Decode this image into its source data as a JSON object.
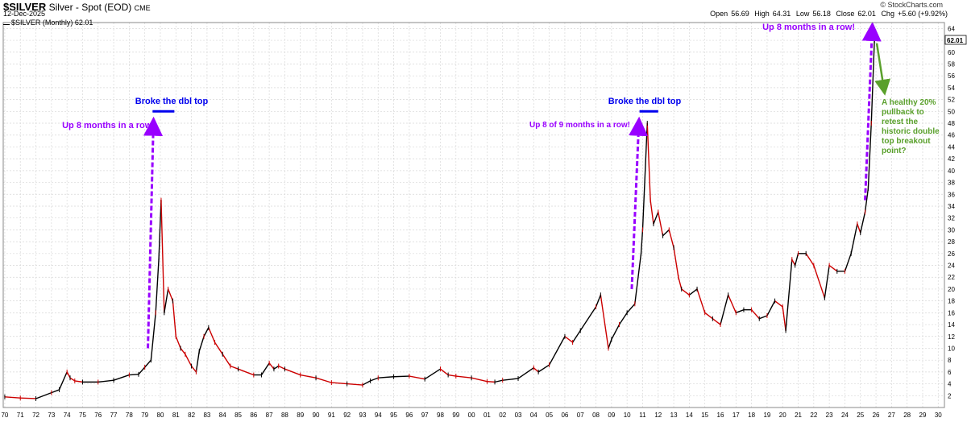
{
  "header": {
    "symbol": "$SILVER",
    "description": "Silver - Spot (EOD)",
    "exchange": "CME",
    "date": "12-Dec-2025",
    "credit": "© StockCharts.com",
    "legend_text": "$SILVER (Monthly) 62.01",
    "ohlc": {
      "open_label": "Open",
      "open": "56.69",
      "high_label": "High",
      "high": "64.31",
      "low_label": "Low",
      "low": "56.18",
      "close_label": "Close",
      "close": "62.01",
      "chg_label": "Chg",
      "chg": "+5.60 (+9.92%)"
    },
    "last_price_tag": "62.01"
  },
  "colors": {
    "up": "#000000",
    "down": "#cc0000",
    "grid": "#d8d8d8",
    "annotation_purple": "#9900ff",
    "annotation_blue": "#0000ee",
    "annotation_green": "#5aa02c"
  },
  "chart_data": {
    "type": "line",
    "title": "$SILVER (Monthly)",
    "xlabel": "",
    "ylabel": "",
    "xlim": [
      1969.9,
      2030.4
    ],
    "ylim": [
      0,
      65
    ],
    "grid": true,
    "y_ticks": [
      2,
      4,
      6,
      8,
      10,
      12,
      14,
      16,
      18,
      20,
      22,
      24,
      26,
      28,
      30,
      32,
      34,
      36,
      38,
      40,
      42,
      44,
      46,
      48,
      50,
      52,
      54,
      56,
      58,
      60,
      62,
      64
    ],
    "x_ticks": [
      "70",
      "71",
      "72",
      "73",
      "74",
      "75",
      "76",
      "77",
      "78",
      "79",
      "80",
      "81",
      "82",
      "83",
      "84",
      "85",
      "86",
      "87",
      "88",
      "89",
      "90",
      "91",
      "92",
      "93",
      "94",
      "95",
      "96",
      "97",
      "98",
      "99",
      "00",
      "01",
      "02",
      "03",
      "04",
      "05",
      "06",
      "07",
      "08",
      "09",
      "10",
      "11",
      "12",
      "13",
      "14",
      "15",
      "16",
      "17",
      "18",
      "19",
      "20",
      "21",
      "22",
      "23",
      "24",
      "25",
      "26",
      "27",
      "28",
      "29",
      "30"
    ],
    "series": [
      {
        "x": [
          1970.0,
          1971.0,
          1972.0,
          1973.0,
          1973.5,
          1974.0,
          1974.2,
          1974.5,
          1975.0,
          1976.0,
          1977.0,
          1978.0,
          1978.6,
          1979.0,
          1979.4,
          1979.7,
          1979.9,
          1980.05,
          1980.25,
          1980.5,
          1980.8,
          1981.0,
          1981.3,
          1981.6,
          1982.0,
          1982.3,
          1982.5,
          1982.8,
          1983.1,
          1983.5,
          1984.0,
          1984.5,
          1985.0,
          1986.0,
          1986.5,
          1987.0,
          1987.3,
          1987.6,
          1988.0,
          1989.0,
          1990.0,
          1991.0,
          1992.0,
          1993.0,
          1993.5,
          1994.0,
          1995.0,
          1996.0,
          1997.0,
          1998.0,
          1998.5,
          1999.0,
          2000.0,
          2001.0,
          2001.5,
          2002.0,
          2003.0,
          2004.0,
          2004.3,
          2005.0,
          2006.0,
          2006.5,
          2007.0,
          2008.0,
          2008.3,
          2008.8,
          2009.0,
          2009.5,
          2010.0,
          2010.5,
          2010.9,
          2011.0,
          2011.3,
          2011.5,
          2011.7,
          2012.0,
          2012.3,
          2012.7,
          2013.0,
          2013.3,
          2013.5,
          2014.0,
          2014.5,
          2015.0,
          2015.5,
          2016.0,
          2016.5,
          2017.0,
          2017.5,
          2018.0,
          2018.5,
          2019.0,
          2019.5,
          2020.0,
          2020.2,
          2020.6,
          2020.8,
          2021.0,
          2021.5,
          2022.0,
          2022.7,
          2023.0,
          2023.5,
          2024.0,
          2024.4,
          2024.8,
          2025.0,
          2025.3,
          2025.5,
          2025.7,
          2025.9
        ],
        "y": [
          1.8,
          1.6,
          1.5,
          2.5,
          3.0,
          6.0,
          5.0,
          4.5,
          4.3,
          4.3,
          4.6,
          5.5,
          5.6,
          6.8,
          8.0,
          16.0,
          25.0,
          35.0,
          16.0,
          20.0,
          18.0,
          12.0,
          10.0,
          9.0,
          7.0,
          6.0,
          9.5,
          12.0,
          13.5,
          11.0,
          9.0,
          7.0,
          6.5,
          5.5,
          5.5,
          7.5,
          6.5,
          7.0,
          6.5,
          5.5,
          5.0,
          4.2,
          4.0,
          3.8,
          4.5,
          5.0,
          5.2,
          5.3,
          4.8,
          6.5,
          5.5,
          5.3,
          5.0,
          4.4,
          4.3,
          4.6,
          4.9,
          6.7,
          6.0,
          7.2,
          12.0,
          11.0,
          13.0,
          17.0,
          19.0,
          10.0,
          11.5,
          14.0,
          16.0,
          17.5,
          26.0,
          30.0,
          48.0,
          35.0,
          31.0,
          33.0,
          29.0,
          30.0,
          27.0,
          22.0,
          20.0,
          19.0,
          20.0,
          16.0,
          15.0,
          14.0,
          19.0,
          16.0,
          16.5,
          16.5,
          15.0,
          15.5,
          18.0,
          17.0,
          13.0,
          25.0,
          24.0,
          26.0,
          26.0,
          24.0,
          18.5,
          24.0,
          23.0,
          23.0,
          26.0,
          31.0,
          29.5,
          33.0,
          37.0,
          48.0,
          62.0
        ]
      }
    ],
    "annotations": [
      {
        "text": "Broke the dbl top",
        "x": 1980.2,
        "y": 50.0,
        "color": "blue"
      },
      {
        "text": "Up 8 months in a row!",
        "x": 1979.4,
        "y": 46.0,
        "color": "purple"
      },
      {
        "text": "Broke the dbl top",
        "x": 2011.4,
        "y": 50.0,
        "color": "blue"
      },
      {
        "text": "Up 8 of 9 months in a row!",
        "x": 2010.6,
        "y": 46.0,
        "color": "purple"
      },
      {
        "text": "Up 8 months in a row!",
        "x": 2025.8,
        "y": 63.0,
        "color": "purple"
      },
      {
        "text": "A healthy 20% pullback to retest the historic double top breakout point?",
        "x": 2026.4,
        "y": 46.0,
        "color": "green"
      }
    ]
  }
}
